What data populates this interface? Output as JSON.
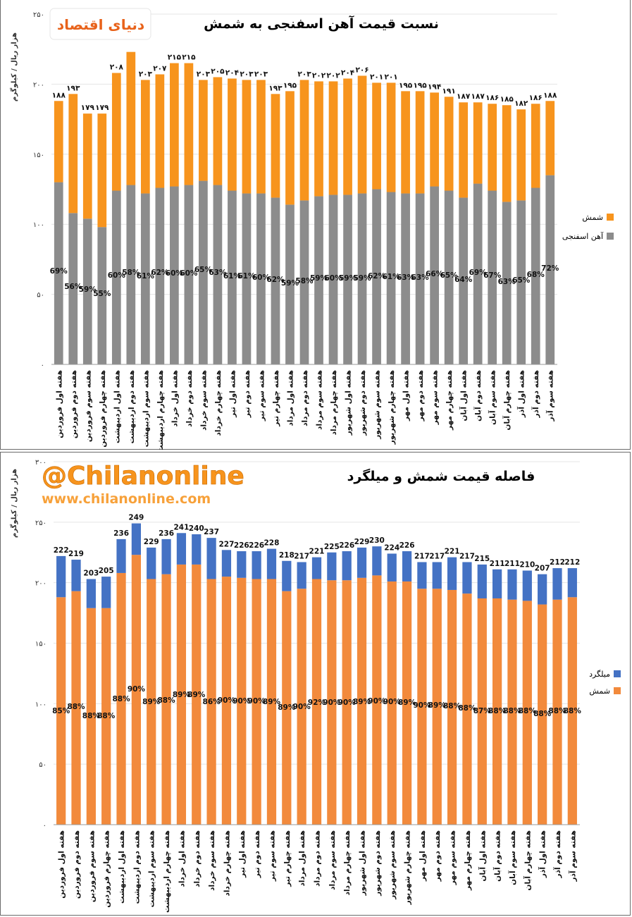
{
  "branding": {
    "logo_text": "دنیای اقتصاد",
    "watermark_handle": "@Chilanonline",
    "watermark_url": "www.chilanonline.com"
  },
  "colors": {
    "orange_top": "#F7941D",
    "gray": "#8C8C8C",
    "orange_bottom": "#F28A3C",
    "blue": "#4472C4",
    "watermark_orange": "#F7941D",
    "watermark_url": "#F7A13A"
  },
  "chart_data": [
    {
      "type": "bar",
      "stacked": true,
      "title": "نسبت قیمت آهن اسفنجی به شمش",
      "ylabel": "هزار ریال / کیلوگرم",
      "ylim": [
        0,
        250
      ],
      "yticks": [
        "۰",
        "۵۰",
        "۱۰۰",
        "۱۵۰",
        "۲۰۰",
        "۲۵۰"
      ],
      "legend_position": "right",
      "categories": [
        "هفته اول فروردین",
        "هفته دوم فروردین",
        "هفته سوم فروردین",
        "هفته چهارم فروردین",
        "هفته اول اردیبهشت",
        "هفته دوم اردیبهشت",
        "هفته سوم اردیبهشت",
        "هفته چهارم اردیبهشت",
        "هفته اول خرداد",
        "هفته دوم خرداد",
        "هفته سوم خرداد",
        "هفته چهارم خرداد",
        "هفته اول تیر",
        "هفته دوم تیر",
        "هفته سوم تیر",
        "هفته چهارم تیر",
        "هفته اول مرداد",
        "هفته دوم مرداد",
        "هفته سوم مرداد",
        "هفته چهارم مرداد",
        "هفته اول شهریور",
        "هفته دوم شهریور",
        "هفته سوم شهریور",
        "هفته چهارم شهریور",
        "هفته اول مهر",
        "هفته دوم مهر",
        "هفته سوم مهر",
        "هفته چهارم مهر",
        "هفته اول آبان",
        "هفته دوم آبان",
        "هفته سوم آبان",
        "هفته چهارم آبان",
        "هفته اول آذر",
        "هفته دوم آذر",
        "هفته سوم آذر"
      ],
      "totals": [
        188,
        193,
        179,
        179,
        208,
        223,
        203,
        207,
        215,
        215,
        203,
        205,
        204,
        203,
        203,
        193,
        195,
        203,
        202,
        202,
        204,
        206,
        201,
        201,
        195,
        195,
        194,
        191,
        187,
        187,
        186,
        185,
        182,
        186,
        188
      ],
      "total_labels": [
        "۱۸۸",
        "۱۹۳",
        "۱۷۹",
        "۱۷۹",
        "۲۰۸",
        "",
        "۲۰۳",
        "۲۰۷",
        "۲۱۵",
        "۲۱۵",
        "۲۰۳",
        "۲۰۵",
        "۲۰۴",
        "۲۰۳",
        "۲۰۳",
        "۱۹۳",
        "۱۹۵",
        "۲۰۳",
        "۲۰۲",
        "۲۰۲",
        "۲۰۴",
        "۲۰۶",
        "۲۰۱",
        "۲۰۱",
        "۱۹۵",
        "۱۹۵",
        "۱۹۴",
        "۱۹۱",
        "۱۸۷",
        "۱۸۷",
        "۱۸۶",
        "۱۸۵",
        "۱۸۲",
        "۱۸۶",
        "۱۸۸"
      ],
      "series": [
        {
          "name": "آهن اسفنجی",
          "color": "#8C8C8C",
          "values": [
            130,
            108,
            104,
            98,
            124,
            128,
            122,
            126,
            127,
            128,
            131,
            128,
            124,
            122,
            122,
            119,
            114,
            117,
            120,
            121,
            121,
            122,
            125,
            123,
            122,
            122,
            127,
            124,
            119,
            129,
            124,
            116,
            117,
            126,
            135
          ]
        },
        {
          "name": "شمش",
          "color": "#F7941D",
          "values": [
            58,
            85,
            75,
            81,
            84,
            95,
            81,
            81,
            88,
            87,
            72,
            77,
            80,
            81,
            81,
            74,
            81,
            86,
            82,
            81,
            83,
            84,
            76,
            78,
            73,
            73,
            67,
            67,
            68,
            58,
            62,
            69,
            65,
            60,
            53
          ]
        }
      ],
      "percent_labels": [
        "69%",
        "56%",
        "59%",
        "55%",
        "60%",
        "58%",
        "61%",
        "62%",
        "60%",
        "60%",
        "65%",
        "63%",
        "61%",
        "61%",
        "60%",
        "62%",
        "59%",
        "58%",
        "59%",
        "60%",
        "59%",
        "59%",
        "62%",
        "61%",
        "63%",
        "63%",
        "66%",
        "65%",
        "64%",
        "69%",
        "67%",
        "63%",
        "65%",
        "68%",
        "72%"
      ]
    },
    {
      "type": "bar",
      "stacked": true,
      "title": "فاصله قیمت شمش و میلگرد",
      "ylabel": "هزار ریال / کیلوگرم",
      "ylim": [
        0,
        300
      ],
      "yticks": [
        "۰",
        "۵۰",
        "۱۰۰",
        "۱۵۰",
        "۲۰۰",
        "۲۵۰",
        "۳۰۰"
      ],
      "legend_position": "right",
      "categories": [
        "هفته اول فروردین",
        "هفته دوم فروردین",
        "هفته سوم فروردین",
        "هفته چهارم فروردین",
        "هفته اول اردیبهشت",
        "هفته دوم اردیبهشت",
        "هفته سوم اردیبهشت",
        "هفته چهارم اردیبهشت",
        "هفته اول خرداد",
        "هفته دوم خرداد",
        "هفته سوم خرداد",
        "هفته چهارم خرداد",
        "هفته اول تیر",
        "هفته دوم تیر",
        "هفته سوم تیر",
        "هفته چهارم تیر",
        "هفته اول مرداد",
        "هفته دوم مرداد",
        "هفته سوم مرداد",
        "هفته چهارم مرداد",
        "هفته اول شهریور",
        "هفته دوم شهریور",
        "هفته سوم شهریور",
        "هفته چهارم شهریور",
        "هفته اول مهر",
        "هفته دوم مهر",
        "هفته سوم مهر",
        "هفته چهارم مهر",
        "هفته اول آبان",
        "هفته دوم آبان",
        "هفته سوم آبان",
        "هفته چهارم آبان",
        "هفته اول آذر",
        "هفته دوم آذر",
        "هفته سوم آذر"
      ],
      "totals": [
        222,
        219,
        203,
        205,
        236,
        249,
        229,
        236,
        241,
        240,
        237,
        227,
        226,
        226,
        228,
        218,
        217,
        221,
        225,
        226,
        229,
        230,
        224,
        226,
        217,
        217,
        221,
        217,
        215,
        211,
        211,
        210,
        207,
        212,
        212
      ],
      "series": [
        {
          "name": "شمش",
          "color": "#F28A3C",
          "values": [
            188,
            193,
            179,
            179,
            208,
            223,
            203,
            207,
            215,
            215,
            203,
            205,
            204,
            203,
            203,
            193,
            195,
            203,
            202,
            202,
            204,
            206,
            201,
            201,
            195,
            195,
            194,
            191,
            187,
            187,
            186,
            185,
            182,
            186,
            188
          ]
        },
        {
          "name": "میلگرد",
          "color": "#4472C4",
          "values": [
            34,
            26,
            24,
            26,
            28,
            26,
            26,
            29,
            26,
            25,
            34,
            22,
            22,
            23,
            25,
            25,
            22,
            18,
            23,
            24,
            25,
            24,
            23,
            25,
            22,
            22,
            27,
            26,
            28,
            24,
            25,
            25,
            25,
            26,
            24
          ]
        }
      ],
      "percent_labels": [
        "85%",
        "88%",
        "88%",
        "88%",
        "88%",
        "90%",
        "89%",
        "88%",
        "89%",
        "89%",
        "86%",
        "90%",
        "90%",
        "90%",
        "89%",
        "89%",
        "90%",
        "92%",
        "90%",
        "90%",
        "89%",
        "90%",
        "90%",
        "89%",
        "90%",
        "89%",
        "88%",
        "88%",
        "87%",
        "88%",
        "88%",
        "88%",
        "88%",
        "88%",
        "88%"
      ]
    }
  ]
}
